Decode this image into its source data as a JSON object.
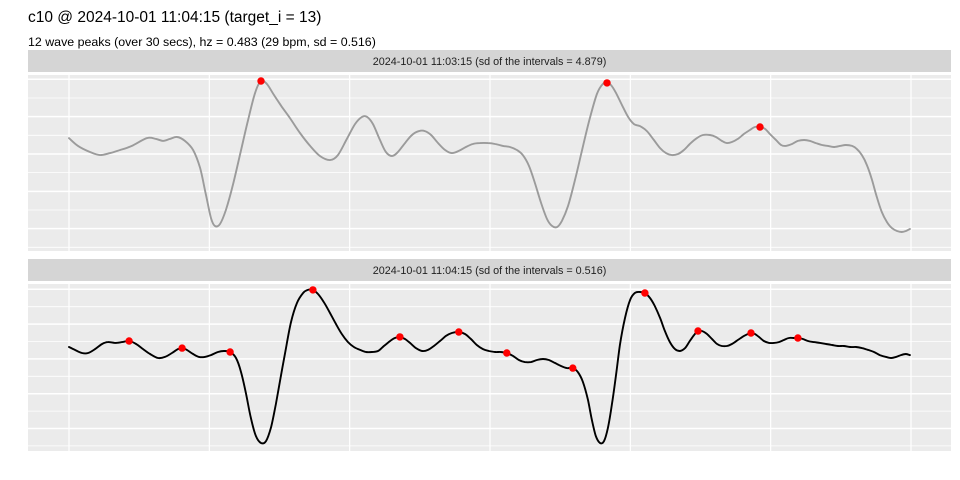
{
  "header": {
    "title": "c10 @ 2024-10-01 11:04:15 (target_i = 13)",
    "subtitle": "12 wave peaks (over 30 secs), hz = 0.483 (29 bpm, sd = 0.516)"
  },
  "colors": {
    "panel_bg": "#EBEBEB",
    "strip_bg": "#D5D5D5",
    "grid": "#FFFFFF",
    "peak_marker": "#FF0000",
    "series1": "#9B9B9B",
    "series2": "#000000"
  },
  "chart_data": [
    {
      "type": "line",
      "facet_label": "2024-10-01 11:03:15 (sd of the intervals = 4.879)",
      "line_color_key": "series1",
      "xlim": [
        0,
        30
      ],
      "ylim": [
        0,
        1
      ],
      "x_ticks": [
        0,
        5,
        10,
        15,
        20,
        25,
        30
      ],
      "grid": "on",
      "legend": "none",
      "xlabel": "",
      "ylabel": "",
      "points": [
        [
          0,
          0.631
        ],
        [
          0.32,
          0.587
        ],
        [
          0.75,
          0.553
        ],
        [
          1.1,
          0.536
        ],
        [
          1.46,
          0.547
        ],
        [
          1.82,
          0.564
        ],
        [
          2.24,
          0.587
        ],
        [
          2.78,
          0.631
        ],
        [
          3.1,
          0.626
        ],
        [
          3.35,
          0.615
        ],
        [
          3.6,
          0.626
        ],
        [
          3.85,
          0.637
        ],
        [
          4.13,
          0.615
        ],
        [
          4.42,
          0.564
        ],
        [
          4.67,
          0.464
        ],
        [
          4.88,
          0.313
        ],
        [
          5.06,
          0.184
        ],
        [
          5.2,
          0.14
        ],
        [
          5.38,
          0.151
        ],
        [
          5.59,
          0.229
        ],
        [
          5.84,
          0.369
        ],
        [
          6.09,
          0.536
        ],
        [
          6.38,
          0.732
        ],
        [
          6.63,
          0.883
        ],
        [
          6.84,
          0.95
        ],
        [
          7.05,
          0.933
        ],
        [
          7.3,
          0.872
        ],
        [
          7.59,
          0.804
        ],
        [
          7.87,
          0.743
        ],
        [
          8.23,
          0.659
        ],
        [
          8.59,
          0.587
        ],
        [
          8.94,
          0.531
        ],
        [
          9.3,
          0.508
        ],
        [
          9.58,
          0.536
        ],
        [
          9.9,
          0.626
        ],
        [
          10.19,
          0.709
        ],
        [
          10.44,
          0.749
        ],
        [
          10.62,
          0.749
        ],
        [
          10.83,
          0.709
        ],
        [
          11.08,
          0.62
        ],
        [
          11.29,
          0.553
        ],
        [
          11.51,
          0.531
        ],
        [
          11.72,
          0.553
        ],
        [
          11.97,
          0.603
        ],
        [
          12.22,
          0.648
        ],
        [
          12.47,
          0.67
        ],
        [
          12.68,
          0.67
        ],
        [
          12.9,
          0.648
        ],
        [
          13.15,
          0.603
        ],
        [
          13.4,
          0.564
        ],
        [
          13.64,
          0.547
        ],
        [
          13.89,
          0.559
        ],
        [
          14.14,
          0.581
        ],
        [
          14.39,
          0.598
        ],
        [
          14.64,
          0.603
        ],
        [
          14.93,
          0.603
        ],
        [
          15.18,
          0.598
        ],
        [
          15.46,
          0.587
        ],
        [
          15.71,
          0.581
        ],
        [
          15.96,
          0.564
        ],
        [
          16.17,
          0.536
        ],
        [
          16.39,
          0.475
        ],
        [
          16.6,
          0.38
        ],
        [
          16.82,
          0.268
        ],
        [
          17.03,
          0.179
        ],
        [
          17.21,
          0.14
        ],
        [
          17.39,
          0.134
        ],
        [
          17.56,
          0.168
        ],
        [
          17.78,
          0.251
        ],
        [
          18.03,
          0.397
        ],
        [
          18.28,
          0.564
        ],
        [
          18.56,
          0.743
        ],
        [
          18.81,
          0.877
        ],
        [
          19.02,
          0.933
        ],
        [
          19.17,
          0.939
        ],
        [
          19.31,
          0.927
        ],
        [
          19.49,
          0.883
        ],
        [
          19.7,
          0.816
        ],
        [
          19.92,
          0.749
        ],
        [
          20.13,
          0.709
        ],
        [
          20.34,
          0.698
        ],
        [
          20.59,
          0.67
        ],
        [
          20.84,
          0.62
        ],
        [
          21.06,
          0.575
        ],
        [
          21.27,
          0.547
        ],
        [
          21.48,
          0.536
        ],
        [
          21.7,
          0.542
        ],
        [
          21.91,
          0.564
        ],
        [
          22.12,
          0.598
        ],
        [
          22.37,
          0.631
        ],
        [
          22.59,
          0.648
        ],
        [
          22.84,
          0.648
        ],
        [
          23.05,
          0.637
        ],
        [
          23.26,
          0.615
        ],
        [
          23.44,
          0.603
        ],
        [
          23.62,
          0.609
        ],
        [
          23.83,
          0.626
        ],
        [
          24.05,
          0.654
        ],
        [
          24.26,
          0.676
        ],
        [
          24.44,
          0.693
        ],
        [
          24.62,
          0.693
        ],
        [
          24.8,
          0.682
        ],
        [
          24.97,
          0.654
        ],
        [
          25.19,
          0.62
        ],
        [
          25.37,
          0.592
        ],
        [
          25.54,
          0.587
        ],
        [
          25.76,
          0.598
        ],
        [
          25.97,
          0.615
        ],
        [
          26.19,
          0.62
        ],
        [
          26.4,
          0.615
        ],
        [
          26.61,
          0.603
        ],
        [
          26.83,
          0.592
        ],
        [
          27.04,
          0.587
        ],
        [
          27.25,
          0.581
        ],
        [
          27.47,
          0.587
        ],
        [
          27.68,
          0.592
        ],
        [
          27.9,
          0.587
        ],
        [
          28.07,
          0.57
        ],
        [
          28.25,
          0.536
        ],
        [
          28.43,
          0.48
        ],
        [
          28.61,
          0.397
        ],
        [
          28.78,
          0.302
        ],
        [
          28.96,
          0.218
        ],
        [
          29.14,
          0.162
        ],
        [
          29.32,
          0.128
        ],
        [
          29.5,
          0.112
        ],
        [
          29.67,
          0.106
        ],
        [
          29.82,
          0.112
        ],
        [
          29.96,
          0.123
        ]
      ],
      "peaks": [
        [
          6.84,
          0.95
        ],
        [
          19.17,
          0.939
        ],
        [
          24.62,
          0.693
        ]
      ]
    },
    {
      "type": "line",
      "facet_label": "2024-10-01 11:04:15 (sd of the intervals = 0.516)",
      "line_color_key": "series2",
      "xlim": [
        0,
        30
      ],
      "ylim": [
        0,
        1
      ],
      "x_ticks": [
        0,
        5,
        10,
        15,
        20,
        25,
        30
      ],
      "grid": "on",
      "legend": "none",
      "xlabel": "",
      "ylabel": "",
      "points": [
        [
          0,
          0.608
        ],
        [
          0.21,
          0.591
        ],
        [
          0.46,
          0.573
        ],
        [
          0.68,
          0.573
        ],
        [
          0.93,
          0.596
        ],
        [
          1.18,
          0.626
        ],
        [
          1.39,
          0.637
        ],
        [
          1.64,
          0.632
        ],
        [
          1.89,
          0.637
        ],
        [
          2.14,
          0.643
        ],
        [
          2.39,
          0.626
        ],
        [
          2.64,
          0.596
        ],
        [
          2.89,
          0.567
        ],
        [
          3.17,
          0.544
        ],
        [
          3.42,
          0.55
        ],
        [
          3.67,
          0.573
        ],
        [
          3.88,
          0.596
        ],
        [
          4.03,
          0.602
        ],
        [
          4.2,
          0.591
        ],
        [
          4.42,
          0.567
        ],
        [
          4.63,
          0.55
        ],
        [
          4.84,
          0.55
        ],
        [
          5.06,
          0.561
        ],
        [
          5.31,
          0.579
        ],
        [
          5.52,
          0.585
        ],
        [
          5.74,
          0.579
        ],
        [
          5.95,
          0.544
        ],
        [
          6.13,
          0.462
        ],
        [
          6.31,
          0.333
        ],
        [
          6.48,
          0.193
        ],
        [
          6.66,
          0.088
        ],
        [
          6.84,
          0.047
        ],
        [
          7.02,
          0.058
        ],
        [
          7.2,
          0.14
        ],
        [
          7.37,
          0.275
        ],
        [
          7.55,
          0.439
        ],
        [
          7.73,
          0.602
        ],
        [
          7.91,
          0.754
        ],
        [
          8.12,
          0.865
        ],
        [
          8.34,
          0.924
        ],
        [
          8.51,
          0.942
        ],
        [
          8.69,
          0.942
        ],
        [
          8.87,
          0.918
        ],
        [
          9.08,
          0.871
        ],
        [
          9.3,
          0.807
        ],
        [
          9.51,
          0.743
        ],
        [
          9.72,
          0.684
        ],
        [
          9.94,
          0.637
        ],
        [
          10.15,
          0.608
        ],
        [
          10.37,
          0.591
        ],
        [
          10.58,
          0.579
        ],
        [
          10.79,
          0.579
        ],
        [
          11.01,
          0.585
        ],
        [
          11.22,
          0.614
        ],
        [
          11.44,
          0.643
        ],
        [
          11.61,
          0.661
        ],
        [
          11.79,
          0.667
        ],
        [
          11.97,
          0.655
        ],
        [
          12.15,
          0.632
        ],
        [
          12.36,
          0.602
        ],
        [
          12.58,
          0.585
        ],
        [
          12.79,
          0.591
        ],
        [
          13.0,
          0.614
        ],
        [
          13.22,
          0.643
        ],
        [
          13.43,
          0.673
        ],
        [
          13.64,
          0.69
        ],
        [
          13.89,
          0.696
        ],
        [
          14.11,
          0.684
        ],
        [
          14.32,
          0.655
        ],
        [
          14.53,
          0.62
        ],
        [
          14.75,
          0.596
        ],
        [
          14.96,
          0.585
        ],
        [
          15.18,
          0.579
        ],
        [
          15.39,
          0.579
        ],
        [
          15.6,
          0.573
        ],
        [
          15.82,
          0.556
        ],
        [
          16.03,
          0.532
        ],
        [
          16.24,
          0.52
        ],
        [
          16.46,
          0.52
        ],
        [
          16.67,
          0.532
        ],
        [
          16.89,
          0.538
        ],
        [
          17.1,
          0.532
        ],
        [
          17.31,
          0.515
        ],
        [
          17.53,
          0.497
        ],
        [
          17.74,
          0.485
        ],
        [
          17.95,
          0.485
        ],
        [
          18.13,
          0.462
        ],
        [
          18.31,
          0.404
        ],
        [
          18.49,
          0.298
        ],
        [
          18.63,
          0.181
        ],
        [
          18.77,
          0.088
        ],
        [
          18.92,
          0.047
        ],
        [
          19.06,
          0.058
        ],
        [
          19.2,
          0.135
        ],
        [
          19.34,
          0.269
        ],
        [
          19.49,
          0.444
        ],
        [
          19.63,
          0.62
        ],
        [
          19.81,
          0.778
        ],
        [
          19.99,
          0.883
        ],
        [
          20.16,
          0.924
        ],
        [
          20.34,
          0.93
        ],
        [
          20.52,
          0.924
        ],
        [
          20.7,
          0.895
        ],
        [
          20.87,
          0.848
        ],
        [
          21.06,
          0.778
        ],
        [
          21.23,
          0.702
        ],
        [
          21.41,
          0.637
        ],
        [
          21.59,
          0.596
        ],
        [
          21.77,
          0.585
        ],
        [
          21.95,
          0.602
        ],
        [
          22.12,
          0.643
        ],
        [
          22.27,
          0.678
        ],
        [
          22.41,
          0.702
        ],
        [
          22.55,
          0.702
        ],
        [
          22.73,
          0.684
        ],
        [
          22.91,
          0.655
        ],
        [
          23.09,
          0.626
        ],
        [
          23.26,
          0.614
        ],
        [
          23.44,
          0.614
        ],
        [
          23.62,
          0.626
        ],
        [
          23.83,
          0.649
        ],
        [
          24.05,
          0.673
        ],
        [
          24.19,
          0.684
        ],
        [
          24.3,
          0.69
        ],
        [
          24.44,
          0.684
        ],
        [
          24.58,
          0.667
        ],
        [
          24.76,
          0.643
        ],
        [
          24.94,
          0.632
        ],
        [
          25.12,
          0.632
        ],
        [
          25.29,
          0.637
        ],
        [
          25.47,
          0.649
        ],
        [
          25.65,
          0.661
        ],
        [
          25.83,
          0.661
        ],
        [
          25.97,
          0.661
        ],
        [
          26.15,
          0.655
        ],
        [
          26.33,
          0.643
        ],
        [
          26.54,
          0.637
        ],
        [
          26.76,
          0.632
        ],
        [
          26.97,
          0.626
        ],
        [
          27.18,
          0.62
        ],
        [
          27.4,
          0.614
        ],
        [
          27.61,
          0.614
        ],
        [
          27.83,
          0.608
        ],
        [
          28.04,
          0.608
        ],
        [
          28.25,
          0.602
        ],
        [
          28.47,
          0.591
        ],
        [
          28.68,
          0.579
        ],
        [
          28.89,
          0.561
        ],
        [
          29.11,
          0.55
        ],
        [
          29.29,
          0.544
        ],
        [
          29.47,
          0.55
        ],
        [
          29.64,
          0.561
        ],
        [
          29.82,
          0.567
        ],
        [
          29.96,
          0.561
        ]
      ],
      "peaks": [
        [
          2.14,
          0.643
        ],
        [
          4.03,
          0.602
        ],
        [
          5.74,
          0.579
        ],
        [
          8.69,
          0.942
        ],
        [
          11.79,
          0.667
        ],
        [
          13.89,
          0.696
        ],
        [
          15.6,
          0.573
        ],
        [
          17.95,
          0.485
        ],
        [
          20.52,
          0.924
        ],
        [
          22.41,
          0.702
        ],
        [
          24.3,
          0.69
        ],
        [
          25.97,
          0.661
        ]
      ]
    }
  ]
}
